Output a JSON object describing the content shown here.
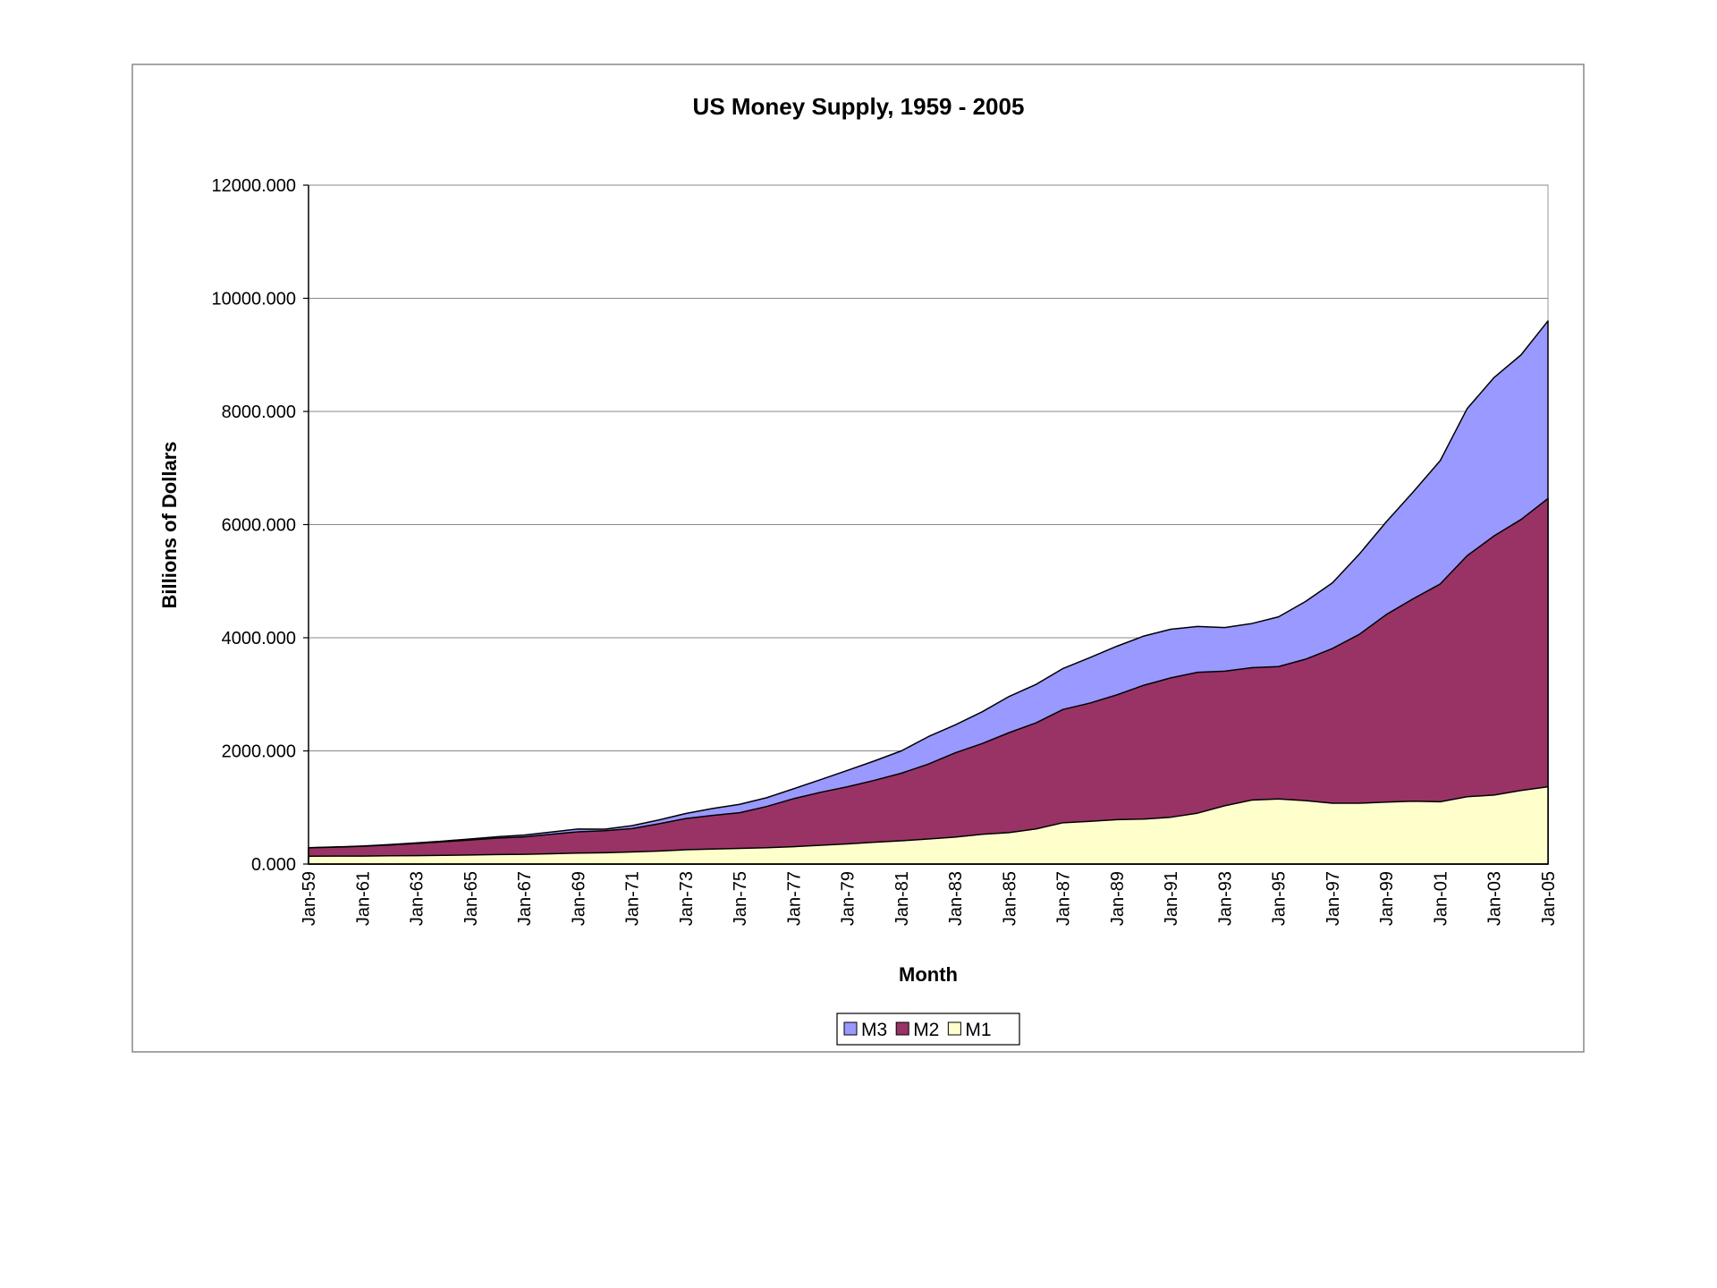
{
  "chart_data": {
    "type": "area",
    "title": "US Money Supply, 1959 - 2005",
    "x_label": "Month",
    "y_label": "Billions of Dollars",
    "categories": [
      "Jan-59",
      null,
      "Jan-61",
      null,
      "Jan-63",
      null,
      "Jan-65",
      null,
      "Jan-67",
      null,
      "Jan-69",
      null,
      "Jan-71",
      null,
      "Jan-73",
      null,
      "Jan-75",
      null,
      "Jan-77",
      null,
      "Jan-79",
      null,
      "Jan-81",
      null,
      "Jan-83",
      null,
      "Jan-85",
      null,
      "Jan-87",
      null,
      "Jan-89",
      null,
      "Jan-91",
      null,
      "Jan-93",
      null,
      "Jan-95",
      null,
      "Jan-97",
      null,
      "Jan-99",
      null,
      "Jan-01",
      null,
      "Jan-03",
      null,
      "Jan-05"
    ],
    "series": [
      {
        "name": "M3",
        "color": "#9999ff",
        "values": [
          289,
          302,
          318,
          343,
          374,
          406,
          442,
          482,
          511,
          566,
          619,
          617,
          678,
          778,
          893,
          982,
          1055,
          1172,
          1330,
          1491,
          1655,
          1822,
          2000,
          2251,
          2459,
          2691,
          2962,
          3175,
          3456,
          3650,
          3850,
          4030,
          4150,
          4200,
          4180,
          4250,
          4370,
          4640,
          4970,
          5480,
          6050,
          6580,
          7130,
          8050,
          8600,
          9000,
          9600
        ]
      },
      {
        "name": "M2",
        "color": "#993366",
        "values": [
          287,
          298,
          314,
          336,
          364,
          393,
          425,
          459,
          481,
          526,
          569,
          589,
          627,
          711,
          804,
          860,
          907,
          1017,
          1155,
          1268,
          1366,
          1479,
          1605,
          1766,
          1966,
          2130,
          2322,
          2495,
          2732,
          2845,
          2990,
          3160,
          3290,
          3390,
          3410,
          3470,
          3490,
          3620,
          3810,
          4060,
          4410,
          4690,
          4950,
          5450,
          5800,
          6090,
          6460
        ]
      },
      {
        "name": "M1",
        "color": "#ffffcc",
        "values": [
          139,
          140,
          141,
          146,
          149,
          154,
          160,
          168,
          171,
          182,
          194,
          199,
          214,
          230,
          252,
          265,
          276,
          288,
          306,
          332,
          356,
          385,
          411,
          443,
          477,
          525,
          555,
          620,
          730,
          755,
          785,
          795,
          827,
          900,
          1030,
          1130,
          1150,
          1120,
          1075,
          1075,
          1095,
          1110,
          1100,
          1190,
          1220,
          1300,
          1365
        ]
      }
    ],
    "ylim": [
      0,
      12000
    ],
    "yticks": [
      {
        "value": 0,
        "label": "0.000"
      },
      {
        "value": 2000,
        "label": "2000.000"
      },
      {
        "value": 4000,
        "label": "4000.000"
      },
      {
        "value": 6000,
        "label": "6000.000"
      },
      {
        "value": 8000,
        "label": "8000.000"
      },
      {
        "value": 10000,
        "label": "10000.000"
      },
      {
        "value": 12000,
        "label": "12000.000"
      }
    ],
    "grid": true,
    "legend": "bottom"
  }
}
